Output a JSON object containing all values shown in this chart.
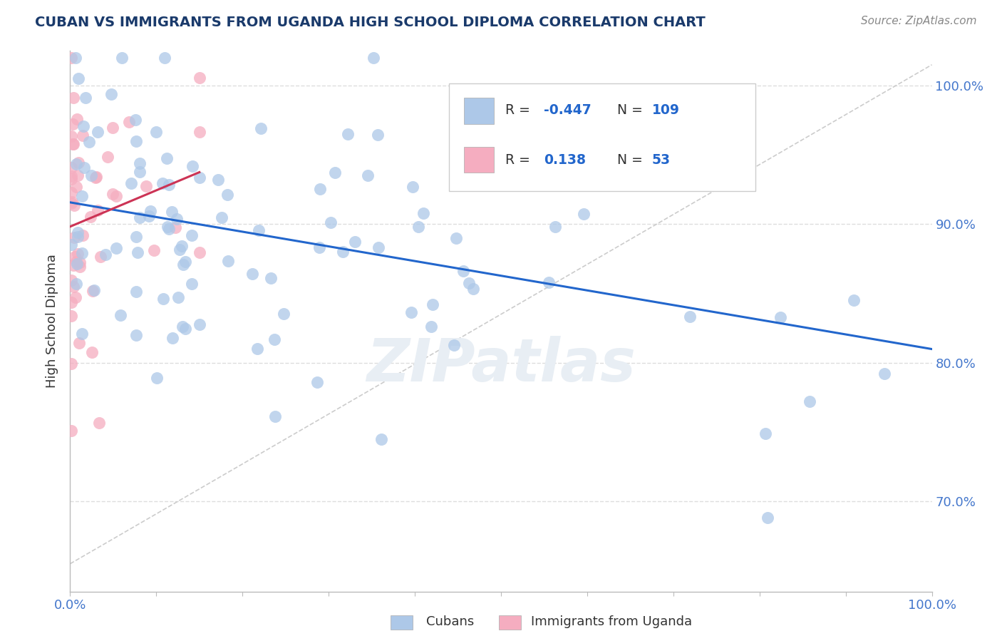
{
  "title": "CUBAN VS IMMIGRANTS FROM UGANDA HIGH SCHOOL DIPLOMA CORRELATION CHART",
  "source": "Source: ZipAtlas.com",
  "ylabel": "High School Diploma",
  "right_yticklabels": [
    "70.0%",
    "80.0%",
    "90.0%",
    "100.0%"
  ],
  "right_yticks": [
    0.7,
    0.8,
    0.9,
    1.0
  ],
  "blue_color": "#adc8e8",
  "pink_color": "#f5adc0",
  "blue_line_color": "#2266cc",
  "pink_line_color": "#cc3355",
  "ref_line_color": "#cccccc",
  "background_color": "#ffffff",
  "grid_color": "#dddddd",
  "title_color": "#1a3a6b",
  "source_color": "#888888",
  "text_color": "#333333",
  "R1": "-0.447",
  "N1": "109",
  "R2": "0.138",
  "N2": "53",
  "xlim": [
    0.0,
    1.0
  ],
  "ylim": [
    0.635,
    1.025
  ]
}
